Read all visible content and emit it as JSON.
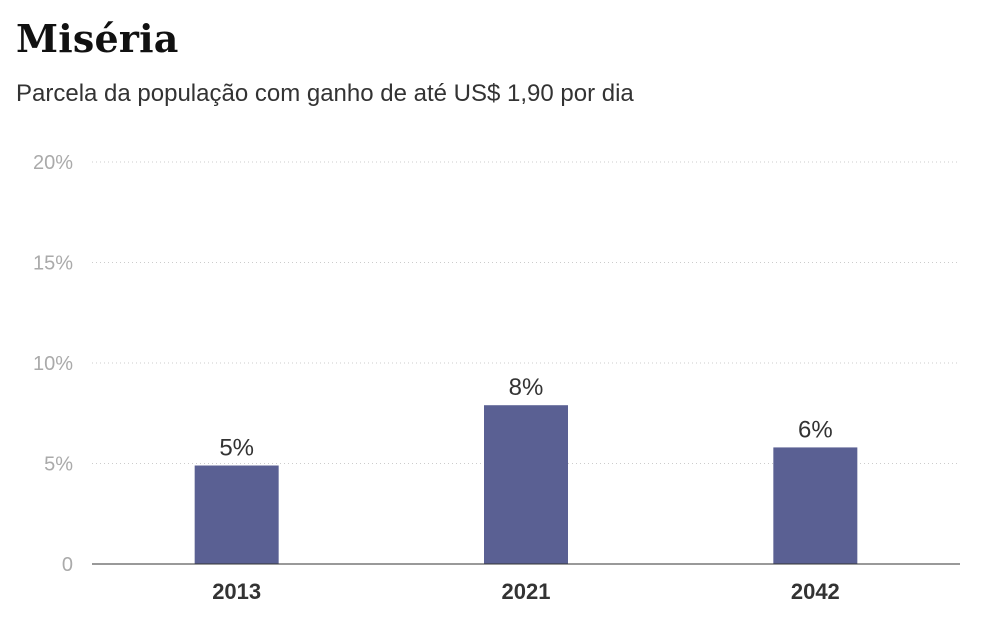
{
  "chart_data": {
    "type": "bar",
    "title": "Miséria",
    "subtitle": "Parcela da população com ganho de até US$ 1,90 por dia",
    "categories": [
      "2013",
      "2021",
      "2042"
    ],
    "values": [
      4.9,
      7.9,
      5.8
    ],
    "data_labels": [
      "5%",
      "8%",
      "6%"
    ],
    "ylim": [
      0,
      20
    ],
    "yticks": [
      {
        "value": 0,
        "label": "0"
      },
      {
        "value": 5,
        "label": "5%"
      },
      {
        "value": 10,
        "label": "10%"
      },
      {
        "value": 15,
        "label": "15%"
      },
      {
        "value": 20,
        "label": "20%"
      }
    ],
    "grid": true,
    "bar_color": "#5a6093",
    "grid_color": "#cccccc",
    "axis_color": "#333333"
  }
}
